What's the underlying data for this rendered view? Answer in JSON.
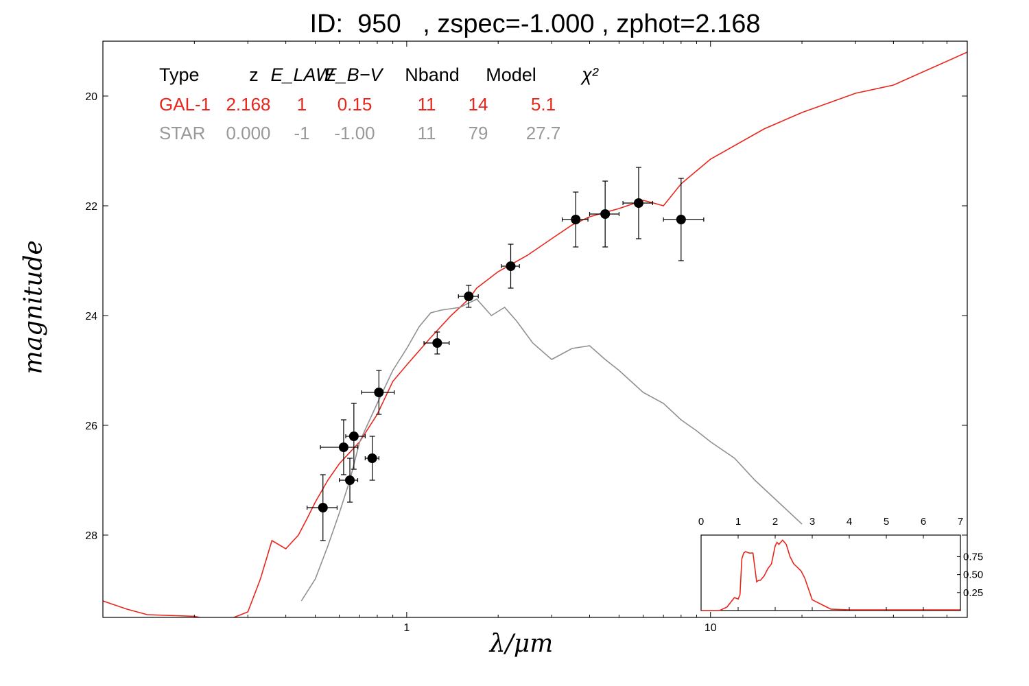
{
  "chart_data": [
    {
      "type": "scatter",
      "title": "ID:  950   , zspec=-1.000 , zphot=2.168",
      "xlabel": "λ/μm",
      "ylabel": "magnitude",
      "xscale": "log",
      "xlim": [
        0.1,
        70
      ],
      "ylim": [
        29.5,
        19.0
      ],
      "yticks": [
        20,
        22,
        24,
        26,
        28
      ],
      "xtick_labels": [
        "1",
        "10"
      ],
      "xtick_values": [
        1,
        10
      ],
      "legend_table": {
        "headers": [
          "Type",
          "z",
          "E_LAW",
          "E_B−V",
          "Nband",
          "Model",
          "χ²"
        ],
        "rows": [
          {
            "cells": [
              "GAL-1",
              "2.168",
              "1",
              "0.15",
              "11",
              "14",
              "5.1"
            ],
            "color": "#e8261c"
          },
          {
            "cells": [
              "STAR",
              "0.000",
              "-1",
              "-1.00",
              "11",
              "79",
              "27.7"
            ],
            "color": "#999999"
          }
        ]
      },
      "points": [
        {
          "x": 0.53,
          "y": 27.5,
          "xerr": [
            0.06,
            0.06
          ],
          "yerr": 0.6
        },
        {
          "x": 0.62,
          "y": 26.4,
          "xerr": [
            0.1,
            0.07
          ],
          "yerr": 0.5
        },
        {
          "x": 0.65,
          "y": 27.0,
          "xerr": [
            0.05,
            0.04
          ],
          "yerr": 0.4
        },
        {
          "x": 0.67,
          "y": 26.2,
          "xerr": [
            0.04,
            0.06
          ],
          "yerr": 0.6
        },
        {
          "x": 0.77,
          "y": 26.6,
          "xerr": [
            0.04,
            0.04
          ],
          "yerr": 0.4
        },
        {
          "x": 0.81,
          "y": 25.4,
          "xerr": [
            0.1,
            0.1
          ],
          "yerr": 0.4
        },
        {
          "x": 1.26,
          "y": 24.5,
          "xerr": [
            0.12,
            0.12
          ],
          "yerr": 0.2
        },
        {
          "x": 1.6,
          "y": 23.65,
          "xerr": [
            0.12,
            0.12
          ],
          "yerr": 0.2
        },
        {
          "x": 2.2,
          "y": 23.1,
          "xerr": [
            0.15,
            0.15
          ],
          "yerr": 0.4
        },
        {
          "x": 3.6,
          "y": 22.25,
          "xerr": [
            0.35,
            0.35
          ],
          "yerr": 0.5
        },
        {
          "x": 4.5,
          "y": 22.15,
          "xerr": [
            0.5,
            0.5
          ],
          "yerr": 0.6
        },
        {
          "x": 5.8,
          "y": 21.95,
          "xerr": [
            0.65,
            0.65
          ],
          "yerr": 0.65
        },
        {
          "x": 8.0,
          "y": 22.25,
          "xerr": [
            1.0,
            1.5
          ],
          "yerr": 0.75
        }
      ],
      "series": [
        {
          "name": "GAL-1",
          "color": "#e8261c",
          "x": [
            0.1,
            0.12,
            0.14,
            0.2,
            0.23,
            0.25,
            0.27,
            0.3,
            0.33,
            0.36,
            0.4,
            0.44,
            0.47,
            0.5,
            0.55,
            0.6,
            0.7,
            0.8,
            0.9,
            1.0,
            1.2,
            1.4,
            1.6,
            1.7,
            2.0,
            2.5,
            3.0,
            3.5,
            4.0,
            5.0,
            6.0,
            6.5,
            7.0,
            8.0,
            10.0,
            15.0,
            20.0,
            30.0,
            40.0,
            70.0
          ],
          "y": [
            29.2,
            29.35,
            29.45,
            29.48,
            29.55,
            29.62,
            29.5,
            29.4,
            28.8,
            28.1,
            28.25,
            28.0,
            27.7,
            27.4,
            27.0,
            26.7,
            26.3,
            25.8,
            25.2,
            24.9,
            24.4,
            24.0,
            23.7,
            23.5,
            23.2,
            22.9,
            22.6,
            22.35,
            22.2,
            22.05,
            21.9,
            21.95,
            22.0,
            21.6,
            21.15,
            20.6,
            20.3,
            19.95,
            19.8,
            19.2
          ]
        },
        {
          "name": "STAR",
          "color": "#909090",
          "x": [
            0.45,
            0.5,
            0.55,
            0.6,
            0.65,
            0.7,
            0.8,
            0.9,
            1.0,
            1.1,
            1.2,
            1.3,
            1.5,
            1.7,
            1.9,
            2.1,
            2.3,
            2.6,
            3.0,
            3.5,
            4.0,
            4.5,
            5.0,
            6.0,
            7.0,
            8.0,
            9.0,
            10.0,
            12.0,
            14.0,
            20.0
          ],
          "y": [
            29.2,
            28.8,
            28.2,
            27.6,
            27.0,
            26.3,
            25.6,
            25.0,
            24.6,
            24.2,
            23.95,
            23.9,
            23.85,
            23.7,
            24.0,
            23.85,
            24.1,
            24.5,
            24.8,
            24.6,
            24.55,
            24.8,
            25.0,
            25.4,
            25.6,
            25.9,
            26.1,
            26.3,
            26.6,
            27.0,
            27.8
          ]
        }
      ]
    },
    {
      "type": "line",
      "xlim": [
        0,
        7
      ],
      "ylim": [
        0,
        1.05
      ],
      "xticks": [
        0,
        1,
        2,
        3,
        4,
        5,
        6,
        7
      ],
      "yticks": [
        0.25,
        0.5,
        0.75
      ],
      "ytick_labels": [
        "0.25",
        "0.50",
        "0.75"
      ],
      "series": [
        {
          "name": "",
          "color": "#e8261c",
          "x": [
            0.0,
            0.5,
            0.7,
            0.9,
            1.0,
            1.05,
            1.1,
            1.15,
            1.2,
            1.3,
            1.4,
            1.45,
            1.5,
            1.55,
            1.6,
            1.7,
            1.8,
            1.9,
            2.0,
            2.05,
            2.1,
            2.2,
            2.3,
            2.4,
            2.5,
            2.6,
            2.7,
            2.8,
            2.9,
            3.0,
            3.5,
            4.0,
            7.0
          ],
          "y": [
            0.0,
            0.0,
            0.05,
            0.18,
            0.16,
            0.22,
            0.72,
            0.8,
            0.82,
            0.8,
            0.8,
            0.6,
            0.4,
            0.42,
            0.42,
            0.48,
            0.58,
            0.65,
            0.9,
            0.95,
            0.92,
            0.98,
            0.92,
            0.75,
            0.65,
            0.6,
            0.55,
            0.45,
            0.3,
            0.15,
            0.02,
            0.01,
            0.01
          ]
        }
      ]
    }
  ]
}
